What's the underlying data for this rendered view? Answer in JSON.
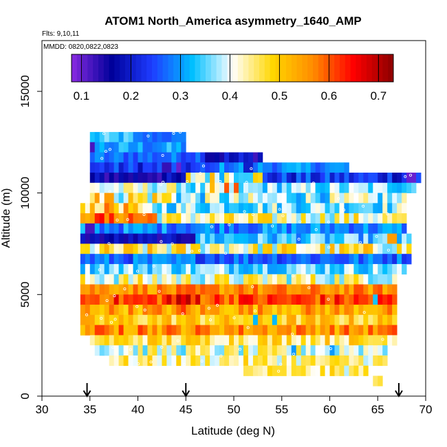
{
  "chart_data": {
    "type": "heatmap",
    "title": "ATOM1 North_America asymmetry_1640_AMP",
    "flights_note": "Flts: 9,10,11",
    "dates_note": "MMDD: 0820,0822,0823",
    "xlabel": "Latitude (deg N)",
    "ylabel": "Altitude (m)",
    "xlim": [
      30,
      70
    ],
    "ylim": [
      0,
      17500
    ],
    "x_ticks": [
      "30",
      "35",
      "40",
      "45",
      "50",
      "55",
      "60",
      "65",
      "70"
    ],
    "y_ticks": [
      "0",
      "5000",
      "10000",
      "15000"
    ],
    "colorbar": {
      "range": [
        0.08,
        0.73
      ],
      "tick_labels": [
        "0.1",
        "0.2",
        "0.3",
        "0.4",
        "0.5",
        "0.6",
        "0.7"
      ],
      "tick_values": [
        0.1,
        0.2,
        0.3,
        0.4,
        0.5,
        0.6,
        0.7
      ],
      "colors": [
        "#8a2be2",
        "#00009a",
        "#1e3cff",
        "#00bfff",
        "#ffffff",
        "#ffd700",
        "#ff8c00",
        "#ff0000",
        "#8b0000"
      ]
    },
    "cell_size": {
      "lat_deg": 0.5,
      "alt_m": 500
    },
    "markers_lat": [
      34.7,
      45.0,
      67.2
    ],
    "rows": [
      {
        "alt": 12500,
        "lat_start": 35.0,
        "lat_end": 39.5,
        "value": 0.33,
        "varia": 0.04
      },
      {
        "alt": 12500,
        "lat_start": 39.5,
        "lat_end": 45.0,
        "value": 0.27,
        "varia": 0.02
      },
      {
        "alt": 12000,
        "lat_start": 35.0,
        "lat_end": 45.0,
        "value": 0.3,
        "varia": 0.05
      },
      {
        "alt": 11500,
        "lat_start": 35.0,
        "lat_end": 47.0,
        "value": 0.27,
        "varia": 0.04
      },
      {
        "alt": 11500,
        "lat_start": 47.0,
        "lat_end": 53.0,
        "value": 0.18,
        "varia": 0.06
      },
      {
        "alt": 11000,
        "lat_start": 35.0,
        "lat_end": 48.0,
        "value": 0.23,
        "varia": 0.05
      },
      {
        "alt": 11000,
        "lat_start": 48.0,
        "lat_end": 62.0,
        "value": 0.29,
        "varia": 0.04
      },
      {
        "alt": 10500,
        "lat_start": 35.0,
        "lat_end": 45.0,
        "value": 0.16,
        "varia": 0.05
      },
      {
        "alt": 10500,
        "lat_start": 45.0,
        "lat_end": 53.0,
        "value": 0.43,
        "varia": 0.12
      },
      {
        "alt": 10500,
        "lat_start": 53.0,
        "lat_end": 69.5,
        "value": 0.23,
        "varia": 0.06
      },
      {
        "alt": 10000,
        "lat_start": 35.0,
        "lat_end": 45.0,
        "value": 0.4,
        "varia": 0.06
      },
      {
        "alt": 10000,
        "lat_start": 45.0,
        "lat_end": 69.0,
        "value": 0.36,
        "varia": 0.06
      },
      {
        "alt": 9500,
        "lat_start": 35.0,
        "lat_end": 44.0,
        "value": 0.45,
        "varia": 0.12
      },
      {
        "alt": 9500,
        "lat_start": 44.0,
        "lat_end": 68.0,
        "value": 0.37,
        "varia": 0.08
      },
      {
        "alt": 9000,
        "lat_start": 34.0,
        "lat_end": 40.0,
        "value": 0.5,
        "varia": 0.09
      },
      {
        "alt": 9000,
        "lat_start": 40.0,
        "lat_end": 68.0,
        "value": 0.37,
        "varia": 0.07
      },
      {
        "alt": 8500,
        "lat_start": 34.0,
        "lat_end": 42.0,
        "value": 0.58,
        "varia": 0.06
      },
      {
        "alt": 8500,
        "lat_start": 42.0,
        "lat_end": 68.0,
        "value": 0.43,
        "varia": 0.08
      },
      {
        "alt": 8000,
        "lat_start": 34.0,
        "lat_end": 68.0,
        "value": 0.29,
        "varia": 0.05
      },
      {
        "alt": 7500,
        "lat_start": 34.0,
        "lat_end": 46.0,
        "value": 0.17,
        "varia": 0.04
      },
      {
        "alt": 7500,
        "lat_start": 46.0,
        "lat_end": 68.5,
        "value": 0.33,
        "varia": 0.06
      },
      {
        "alt": 7000,
        "lat_start": 34.0,
        "lat_end": 68.5,
        "value": 0.44,
        "varia": 0.1
      },
      {
        "alt": 6500,
        "lat_start": 34.0,
        "lat_end": 68.5,
        "value": 0.27,
        "varia": 0.05
      },
      {
        "alt": 6000,
        "lat_start": 34.0,
        "lat_end": 68.0,
        "value": 0.36,
        "varia": 0.06
      },
      {
        "alt": 5500,
        "lat_start": 34.0,
        "lat_end": 67.0,
        "value": 0.42,
        "varia": 0.08
      },
      {
        "alt": 5000,
        "lat_start": 34.0,
        "lat_end": 67.0,
        "value": 0.56,
        "varia": 0.05
      },
      {
        "alt": 4500,
        "lat_start": 34.0,
        "lat_end": 67.0,
        "value": 0.61,
        "varia": 0.06
      },
      {
        "alt": 4000,
        "lat_start": 34.0,
        "lat_end": 67.0,
        "value": 0.54,
        "varia": 0.06
      },
      {
        "alt": 3500,
        "lat_start": 34.0,
        "lat_end": 67.0,
        "value": 0.49,
        "varia": 0.06
      },
      {
        "alt": 3000,
        "lat_start": 34.0,
        "lat_end": 67.0,
        "value": 0.56,
        "varia": 0.06
      },
      {
        "alt": 2500,
        "lat_start": 35.0,
        "lat_end": 67.0,
        "value": 0.47,
        "varia": 0.06
      },
      {
        "alt": 2000,
        "lat_start": 35.0,
        "lat_end": 66.0,
        "value": 0.41,
        "varia": 0.07
      },
      {
        "alt": 1500,
        "lat_start": 37.0,
        "lat_end": 66.0,
        "value": 0.44,
        "varia": 0.06
      },
      {
        "alt": 1000,
        "lat_start": 51.0,
        "lat_end": 64.0,
        "value": 0.44,
        "varia": 0.06
      },
      {
        "alt": 500,
        "lat_start": 64.5,
        "lat_end": 65.5,
        "value": 0.48,
        "varia": 0.03
      }
    ],
    "overrides": [
      {
        "lat": 35.0,
        "alt": 12000,
        "value": 0.12
      },
      {
        "lat": 35.0,
        "alt": 12500,
        "value": 0.33
      },
      {
        "lat": 43.0,
        "alt": 11000,
        "value": 0.13
      },
      {
        "lat": 44.0,
        "alt": 11000,
        "value": 0.1
      },
      {
        "lat": 42.5,
        "alt": 11000,
        "value": 0.13
      },
      {
        "lat": 51.0,
        "alt": 11000,
        "value": 0.2
      },
      {
        "lat": 51.5,
        "alt": 11000,
        "value": 0.2
      },
      {
        "lat": 68.0,
        "alt": 10500,
        "value": 0.1
      },
      {
        "lat": 68.5,
        "alt": 10500,
        "value": 0.1
      },
      {
        "lat": 35.0,
        "alt": 10500,
        "value": 0.16
      },
      {
        "lat": 49.0,
        "alt": 10000,
        "value": 0.6
      },
      {
        "lat": 50.0,
        "alt": 10000,
        "value": 0.6
      },
      {
        "lat": 47.5,
        "alt": 10000,
        "value": 0.52
      },
      {
        "lat": 35.5,
        "alt": 9500,
        "value": 0.55
      },
      {
        "lat": 36.5,
        "alt": 9500,
        "value": 0.55
      },
      {
        "lat": 37.0,
        "alt": 9000,
        "value": 0.55
      },
      {
        "lat": 39.0,
        "alt": 8500,
        "value": 0.62
      },
      {
        "lat": 36.0,
        "alt": 8500,
        "value": 0.65
      },
      {
        "lat": 34.5,
        "alt": 8000,
        "value": 0.12
      },
      {
        "lat": 35.0,
        "alt": 8000,
        "value": 0.12
      },
      {
        "lat": 66.0,
        "alt": 7500,
        "value": 0.55
      },
      {
        "lat": 66.5,
        "alt": 7500,
        "value": 0.55
      },
      {
        "lat": 52.0,
        "alt": 7000,
        "value": 0.5
      },
      {
        "lat": 53.0,
        "alt": 7000,
        "value": 0.5
      },
      {
        "lat": 50.5,
        "alt": 4500,
        "value": 0.65
      },
      {
        "lat": 50.5,
        "alt": 5000,
        "value": 0.6
      },
      {
        "lat": 43.0,
        "alt": 4500,
        "value": 0.68
      },
      {
        "lat": 44.0,
        "alt": 4500,
        "value": 0.7
      },
      {
        "lat": 45.0,
        "alt": 4500,
        "value": 0.7
      },
      {
        "lat": 46.0,
        "alt": 4500,
        "value": 0.68
      },
      {
        "lat": 44.5,
        "alt": 4000,
        "value": 0.62
      },
      {
        "lat": 38.0,
        "alt": 3000,
        "value": 0.62
      },
      {
        "lat": 40.0,
        "alt": 3000,
        "value": 0.62
      },
      {
        "lat": 56.0,
        "alt": 2000,
        "value": 0.3
      },
      {
        "lat": 60.0,
        "alt": 2000,
        "value": 0.3
      },
      {
        "lat": 64.5,
        "alt": 4500,
        "value": 0.33
      },
      {
        "lat": 54.0,
        "alt": 3500,
        "value": 0.32
      },
      {
        "lat": 52.0,
        "alt": 3500,
        "value": 0.32
      }
    ]
  }
}
